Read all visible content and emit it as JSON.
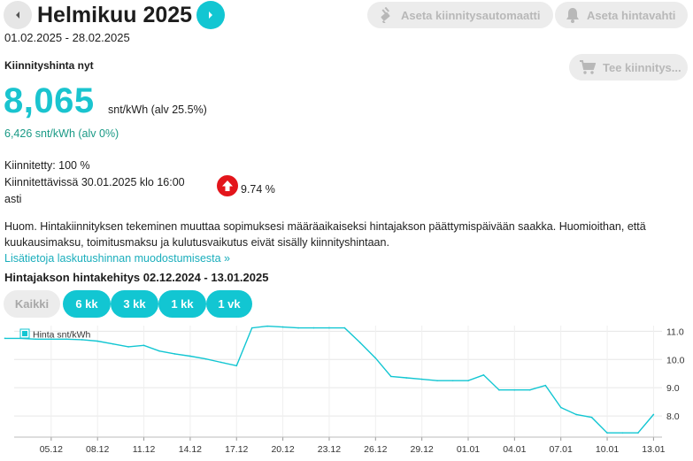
{
  "header": {
    "title": "Helmikuu 2025",
    "date_range": "01.02.2025 - 28.02.2025",
    "automation_button": "Aseta kiinnitysautomaatti",
    "alert_button": "Aseta hintavahti",
    "fix_button": "Tee kiinnitys..."
  },
  "price": {
    "heading": "Kiinnityshinta nyt",
    "value": "8,065",
    "unit": "snt/kWh (alv 25.5%)",
    "without_vat": "6,426 snt/kWh (alv 0%)"
  },
  "status": {
    "fixed": "Kiinnitetty: 100 %",
    "fixable_line1": "Kiinnitettävissä 30.01.2025 klo 16:00",
    "fixable_line2": "asti",
    "change_pct": "9.74 %"
  },
  "notice": {
    "text": "Huom. Hintakiinnityksen tekeminen muuttaa sopimuksesi määräaikaiseksi hintajakson päättymispäivään saakka. Huomioithan, että kuukausimaksu, toimitusmaksu ja kulutusvaikutus eivät sisälly kiinnityshintaan.",
    "link": "Lisätietoja laskutushinnan muodostumisesta »"
  },
  "chart_section": {
    "title": "Hintajakson hintakehitys 02.12.2024 - 13.01.2025",
    "ranges": [
      {
        "label": "Kaikki",
        "active": false
      },
      {
        "label": "6 kk",
        "active": true
      },
      {
        "label": "3 kk",
        "active": true
      },
      {
        "label": "1 kk",
        "active": true
      },
      {
        "label": "1 vk",
        "active": true
      }
    ]
  },
  "colors": {
    "accent": "#12c6d2",
    "price": "#1ac4cf",
    "novat": "#1a9a86",
    "link": "#1aaebc",
    "badge": "#e3151b",
    "button_bg": "#ececec",
    "button_text": "#b8b8b8"
  },
  "icons": {
    "prev": "chevron-left-icon",
    "next": "chevron-right-icon",
    "automation": "plug-icon",
    "alert": "bell-icon",
    "cart": "cart-icon",
    "change": "arrow-up-icon"
  },
  "chart_data": {
    "type": "line",
    "title": "",
    "xlabel": "",
    "ylabel": "",
    "legend": "Hinta snt/kWh",
    "legend_position": "top-left",
    "ylim": [
      7.25,
      11.2
    ],
    "yticks": [
      "11.0",
      "10.0",
      "9.0",
      "8.0"
    ],
    "grid": true,
    "x_tick_labels": [
      "05.12",
      "08.12",
      "11.12",
      "14.12",
      "17.12",
      "20.12",
      "23.12",
      "26.12",
      "29.12",
      "01.01",
      "04.01",
      "07.01",
      "10.01",
      "13.01"
    ],
    "series": [
      {
        "name": "Hinta snt/kWh",
        "x": [
          "02.12",
          "03.12",
          "04.12",
          "05.12",
          "06.12",
          "07.12",
          "08.12",
          "09.12",
          "10.12",
          "11.12",
          "12.12",
          "13.12",
          "14.12",
          "15.12",
          "16.12",
          "17.12",
          "18.12",
          "19.12",
          "20.12",
          "21.12",
          "22.12",
          "23.12",
          "24.12",
          "25.12",
          "26.12",
          "27.12",
          "28.12",
          "29.12",
          "30.12",
          "31.12",
          "01.01",
          "02.01",
          "03.01",
          "04.01",
          "05.01",
          "06.01",
          "07.01",
          "08.01",
          "09.01",
          "10.01",
          "11.01",
          "12.01",
          "13.01"
        ],
        "values": [
          10.75,
          10.75,
          10.72,
          10.72,
          10.72,
          10.7,
          10.65,
          10.55,
          10.45,
          10.5,
          10.3,
          10.2,
          10.12,
          10.02,
          9.9,
          9.78,
          11.12,
          11.18,
          11.15,
          11.12,
          11.12,
          11.12,
          11.12,
          10.6,
          10.05,
          9.4,
          9.35,
          9.3,
          9.25,
          9.25,
          9.25,
          9.45,
          8.92,
          8.92,
          8.92,
          9.08,
          8.3,
          8.05,
          7.95,
          7.4,
          7.4,
          7.4,
          8.05
        ]
      }
    ]
  }
}
